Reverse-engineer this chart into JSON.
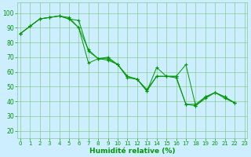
{
  "line1": [
    86,
    91,
    96,
    97,
    98,
    96,
    95,
    74,
    69,
    69,
    65,
    56,
    55,
    47,
    57,
    57,
    57,
    65,
    37,
    42,
    46,
    42,
    39
  ],
  "line2": [
    86,
    91,
    96,
    97,
    98,
    96,
    90,
    75,
    69,
    68,
    65,
    57,
    55,
    48,
    57,
    57,
    56,
    38,
    37,
    43,
    46,
    43,
    39
  ],
  "line3": [
    86,
    91,
    96,
    97,
    98,
    97,
    90,
    66,
    69,
    70,
    65,
    57,
    55,
    47,
    63,
    57,
    57,
    38,
    38,
    43,
    46,
    43,
    39
  ],
  "x": [
    0,
    1,
    2,
    3,
    4,
    5,
    6,
    7,
    8,
    9,
    10,
    11,
    12,
    13,
    14,
    15,
    16,
    17,
    18,
    19,
    20,
    21,
    22
  ],
  "bg_color": "#cceeff",
  "grid_color": "#88cc88",
  "line_color": "#009900",
  "ylabel_vals": [
    20,
    30,
    40,
    50,
    60,
    70,
    80,
    90,
    100
  ],
  "ylim": [
    15,
    107
  ],
  "xlim": [
    -0.3,
    23.3
  ],
  "xlabel": "Humidité relative (%)",
  "xlabel_color": "#009900",
  "tick_color": "#009900",
  "tick_fontsize": 5.5,
  "xlabel_fontsize": 6.5
}
